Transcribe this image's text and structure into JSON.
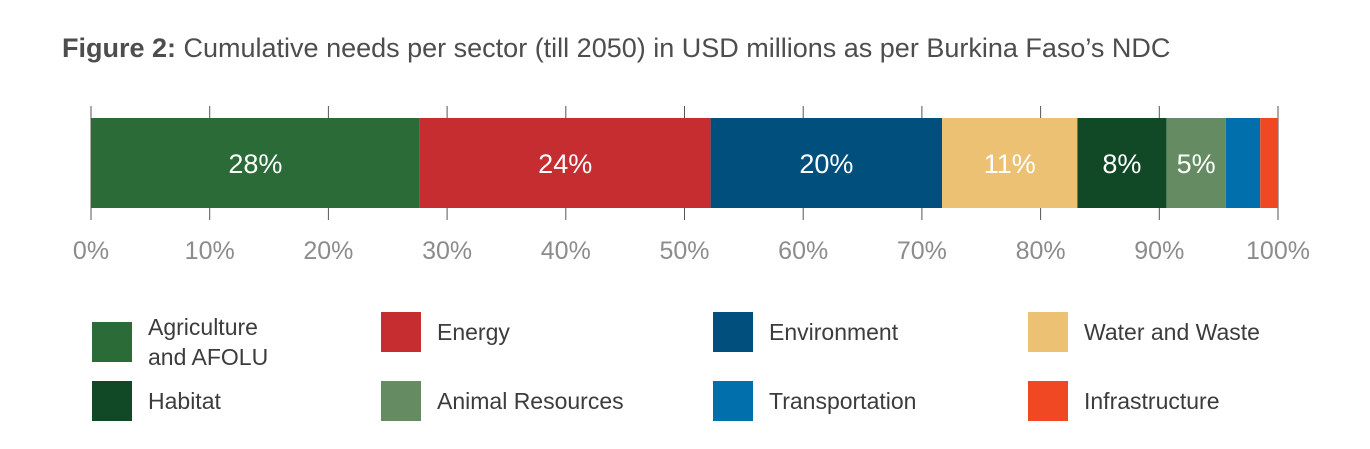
{
  "title": {
    "prefix": "Figure 2:",
    "text": " Cumulative needs per sector (till 2050) in USD millions as per Burkina Faso’s NDC"
  },
  "chart_data": {
    "type": "bar",
    "orientation": "horizontal-stacked",
    "xlim": [
      0,
      100
    ],
    "x_ticks": [
      "0%",
      "10%",
      "20%",
      "30%",
      "40%",
      "50%",
      "60%",
      "70%",
      "80%",
      "90%",
      "100%"
    ],
    "legend_position": "bottom",
    "grid": false,
    "series": [
      {
        "name": "Agriculture\nand AFOLU",
        "value": 27.7,
        "label": "28%",
        "color": "#2a6b38"
      },
      {
        "name": "Energy",
        "value": 24.5,
        "label": "24%",
        "color": "#c52d31"
      },
      {
        "name": "Environment",
        "value": 19.5,
        "label": "20%",
        "color": "#004f7c"
      },
      {
        "name": "Water and Waste",
        "value": 11.4,
        "label": "11%",
        "color": "#ecc174"
      },
      {
        "name": "Habitat",
        "value": 7.5,
        "label": "8%",
        "color": "#114826"
      },
      {
        "name": "Animal Resources",
        "value": 5.0,
        "label": "5%",
        "color": "#658b63"
      },
      {
        "name": "Transportation",
        "value": 2.9,
        "label": "",
        "color": "#006fac"
      },
      {
        "name": "Infrastructure",
        "value": 1.5,
        "label": "",
        "color": "#ef4823"
      }
    ]
  }
}
